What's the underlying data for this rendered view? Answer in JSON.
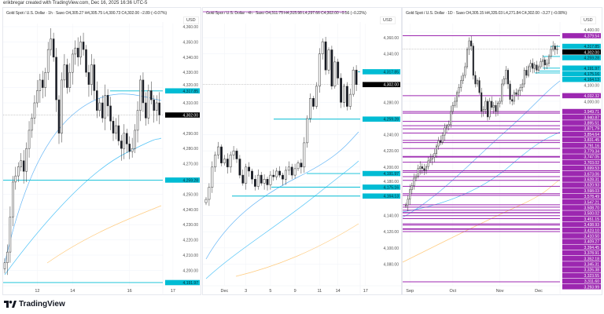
{
  "header": {
    "credit": "erikbregar created with TradingView.com, Dec 16, 2025 16:36 UTC-5"
  },
  "brand": {
    "name": "TradingView"
  },
  "colors": {
    "cyan": "#00bcd4",
    "purple": "#9c27b0",
    "last": "#000000",
    "ma_fast": "#64b5f6",
    "ma_slow": "#4fc3f7",
    "ma_long": "#ffcc80"
  },
  "panels": [
    {
      "title": "Gold Spot / U.S. Dollar · 1h · Saxo  O4,305.27  H4,305.75  L4,300.73  C4,302.00  −2.89 (−0.07%)",
      "currency": "USD"
    },
    {
      "title": "Gold Spot / U.S. Dollar · 4h · Saxo  O4,311.75  H4,315.98  L4,297.66  C4,302.00  −9.56 (−0.22%)",
      "currency": "USD"
    },
    {
      "title": "Gold Spot / U.S. Dollar · 1D · Saxo  O4,305.15  H4,335.03  L4,271.84  C4,302.00  −3.27 (−0.08%)",
      "currency": "USD"
    }
  ],
  "chart_data": [
    {
      "type": "candlestick",
      "symbol": "XAUUSD",
      "timeframe": "1h",
      "closes": [
        4205,
        4212,
        4235,
        4258,
        4262,
        4268,
        4272,
        4265,
        4280,
        4292,
        4300,
        4310,
        4318,
        4325,
        4320,
        4330,
        4345,
        4352,
        4340,
        4312,
        4290,
        4325,
        4335,
        4320,
        4330,
        4342,
        4346,
        4340,
        4350,
        4345,
        4330,
        4322,
        4335,
        4318,
        4305,
        4310,
        4300,
        4315,
        4308,
        4298,
        4290,
        4295,
        4285,
        4280,
        4290,
        4283,
        4278,
        4280,
        4292,
        4305,
        4325,
        4310,
        4300,
        4318,
        4312,
        4305,
        4310,
        4302
      ],
      "x_ticks": [
        {
          "label": "12",
          "at": 12
        },
        {
          "label": "14",
          "at": 25
        },
        {
          "label": "16",
          "at": 46
        },
        {
          "label": "17",
          "at": 62
        }
      ],
      "y_ticks": [
        "4,360.00",
        "4,350.00",
        "4,340.00",
        "4,330.00",
        "4,320.00",
        "4,310.00",
        "4,290.00",
        "4,280.00",
        "4,270.00",
        "4,250.00",
        "4,240.00",
        "4,230.00",
        "4,220.00",
        "4,210.00",
        "4,200.00"
      ],
      "y_tick_values": [
        4360,
        4350,
        4340,
        4330,
        4320,
        4310,
        4290,
        4280,
        4270,
        4250,
        4240,
        4230,
        4220,
        4210,
        4200
      ],
      "levels": [
        {
          "price": 4317.85,
          "label": "4,317.85",
          "kind": "cyan"
        },
        {
          "price": 4259.28,
          "label": "4,259.28",
          "kind": "cyan"
        },
        {
          "price": 4191.97,
          "label": "4,191.97",
          "kind": "cyan"
        }
      ],
      "last": {
        "price": 4302.0,
        "label": "4,302.00"
      }
    },
    {
      "type": "candlestick",
      "symbol": "XAUUSD",
      "timeframe": "4h",
      "closes": [
        4160,
        4175,
        4200,
        4215,
        4225,
        4205,
        4210,
        4200,
        4215,
        4220,
        4210,
        4190,
        4180,
        4200,
        4195,
        4185,
        4176,
        4190,
        4180,
        4185,
        4178,
        4190,
        4188,
        4195,
        4190,
        4185,
        4196,
        4200,
        4190,
        4198,
        4205,
        4200,
        4230,
        4260,
        4285,
        4275,
        4300,
        4340,
        4355,
        4320,
        4345,
        4300,
        4330,
        4310,
        4280,
        4300,
        4275,
        4290,
        4320,
        4302
      ],
      "x_ticks": [
        {
          "label": "Dec",
          "at": 6
        },
        {
          "label": "3",
          "at": 13
        },
        {
          "label": "5",
          "at": 21
        },
        {
          "label": "9",
          "at": 29
        },
        {
          "label": "11",
          "at": 37
        },
        {
          "label": "14",
          "at": 43
        },
        {
          "label": "17",
          "at": 52
        }
      ],
      "y_ticks": [
        "4,360.00",
        "4,340.00",
        "4,280.00",
        "4,240.00",
        "4,220.00",
        "4,200.00",
        "4,180.00",
        "4,140.00",
        "4,120.00",
        "4,100.00",
        "4,080.00"
      ],
      "y_tick_values": [
        4360,
        4340,
        4280,
        4240,
        4220,
        4200,
        4180,
        4140,
        4120,
        4100,
        4080
      ],
      "levels": [
        {
          "price": 4317.85,
          "label": "4,317.85",
          "kind": "cyan"
        },
        {
          "price": 4259.28,
          "label": "4,259.28",
          "kind": "cyan"
        },
        {
          "price": 4191.97,
          "label": "4,191.97",
          "kind": "cyan"
        },
        {
          "price": 4175.16,
          "label": "4,175.16",
          "kind": "cyan"
        },
        {
          "price": 4164.13,
          "label": "4,164.13",
          "kind": "cyan"
        }
      ],
      "last": {
        "price": 4302.0,
        "label": "4,302.00"
      }
    },
    {
      "type": "candlestick",
      "symbol": "XAUUSD",
      "timeframe": "1D",
      "closes": [
        3450,
        3480,
        3530,
        3550,
        3590,
        3600,
        3640,
        3650,
        3640,
        3630,
        3650,
        3680,
        3690,
        3700,
        3720,
        3760,
        3790,
        3780,
        3820,
        3860,
        3870,
        3880,
        3950,
        3980,
        4000,
        4050,
        4080,
        4120,
        4150,
        4200,
        4300,
        4350,
        4320,
        4150,
        4100,
        4120,
        4050,
        3950,
        3960,
        4000,
        3920,
        4000,
        3970,
        3980,
        3950,
        3990,
        4000,
        4100,
        4130,
        4180,
        4100,
        4010,
        4000,
        4050,
        4040,
        4060,
        4080,
        4100,
        4180,
        4150,
        4200,
        4220,
        4190,
        4210,
        4180,
        4200,
        4230,
        4240,
        4210,
        4220,
        4260,
        4300,
        4320,
        4300,
        4302
      ],
      "x_ticks": [
        {
          "label": "Sep",
          "at": 2
        },
        {
          "label": "Oct",
          "at": 23
        },
        {
          "label": "Nov",
          "at": 46
        },
        {
          "label": "Dec",
          "at": 65
        }
      ],
      "y_ticks": [
        "4,400.00",
        "4,100.00",
        "4,000.00"
      ],
      "y_tick_values": [
        4400,
        4100,
        4000
      ],
      "levels": [
        {
          "price": 4379.54,
          "label": "4,379.54",
          "kind": "purple"
        },
        {
          "price": 4317.85,
          "label": "4,317.85",
          "kind": "cyan"
        },
        {
          "price": 4259.28,
          "label": "4,259.28",
          "kind": "cyan"
        },
        {
          "price": 4191.97,
          "label": "4,191.97",
          "kind": "cyan"
        },
        {
          "price": 4175.16,
          "label": "4,175.16",
          "kind": "cyan"
        },
        {
          "price": 4164.13,
          "label": "4,164.13",
          "kind": "cyan"
        },
        {
          "price": 4032.32,
          "label": "4,032.32",
          "kind": "purple"
        },
        {
          "price": 3949.71,
          "label": "3,949.71",
          "kind": "purple"
        },
        {
          "price": 3940.87,
          "label": "3,940.87",
          "kind": "purple"
        },
        {
          "price": 3895.51,
          "label": "3,895.51",
          "kind": "purple"
        },
        {
          "price": 3871.79,
          "label": "3,871.79",
          "kind": "purple"
        },
        {
          "price": 3854.64,
          "label": "3,854.64",
          "kind": "purple"
        },
        {
          "price": 3831.45,
          "label": "3,831.45",
          "kind": "purple"
        },
        {
          "price": 3791.16,
          "label": "3,791.16",
          "kind": "purple"
        },
        {
          "price": 3779.34,
          "label": "3,779.34",
          "kind": "purple"
        },
        {
          "price": 3747.05,
          "label": "3,747.05",
          "kind": "purple"
        },
        {
          "price": 3703.02,
          "label": "3,703.02",
          "kind": "purple"
        },
        {
          "price": 3699.53,
          "label": "3,699.53",
          "kind": "purple"
        },
        {
          "price": 3673.06,
          "label": "3,673.06",
          "kind": "purple"
        },
        {
          "price": 3628.31,
          "label": "3,628.31",
          "kind": "purple"
        },
        {
          "price": 3620.93,
          "label": "3,620.93",
          "kind": "purple"
        },
        {
          "price": 3598.03,
          "label": "3,598.03",
          "kind": "purple"
        },
        {
          "price": 3578.49,
          "label": "3,578.49",
          "kind": "purple"
        },
        {
          "price": 3547.21,
          "label": "3,547.21",
          "kind": "purple"
        },
        {
          "price": 3508.7,
          "label": "3,508.70",
          "kind": "purple"
        },
        {
          "price": 3500.02,
          "label": "3,500.02",
          "kind": "purple"
        },
        {
          "price": 3451.15,
          "label": "3,451.15",
          "kind": "purple"
        },
        {
          "price": 3438.93,
          "label": "3,438.93",
          "kind": "purple"
        },
        {
          "price": 3423.1,
          "label": "3,423.10",
          "kind": "purple"
        },
        {
          "price": 3410.5,
          "label": "3,410.50",
          "kind": "purple"
        },
        {
          "price": 3409.27,
          "label": "3,409.27",
          "kind": "purple"
        },
        {
          "price": 3394.45,
          "label": "3,394.45",
          "kind": "purple"
        },
        {
          "price": 3378.91,
          "label": "3,378.91",
          "kind": "purple"
        },
        {
          "price": 3352.18,
          "label": "3,352.18",
          "kind": "purple"
        },
        {
          "price": 3345.31,
          "label": "3,345.31",
          "kind": "purple"
        },
        {
          "price": 3326.38,
          "label": "3,326.38",
          "kind": "purple"
        },
        {
          "price": 3323.55,
          "label": "3,323.55",
          "kind": "purple"
        },
        {
          "price": 3311.6,
          "label": "3,311.60",
          "kind": "purple"
        },
        {
          "price": 3293.99,
          "label": "3,293.99",
          "kind": "purple"
        }
      ],
      "last": {
        "price": 4302.0,
        "label": "4,302.00"
      }
    }
  ]
}
